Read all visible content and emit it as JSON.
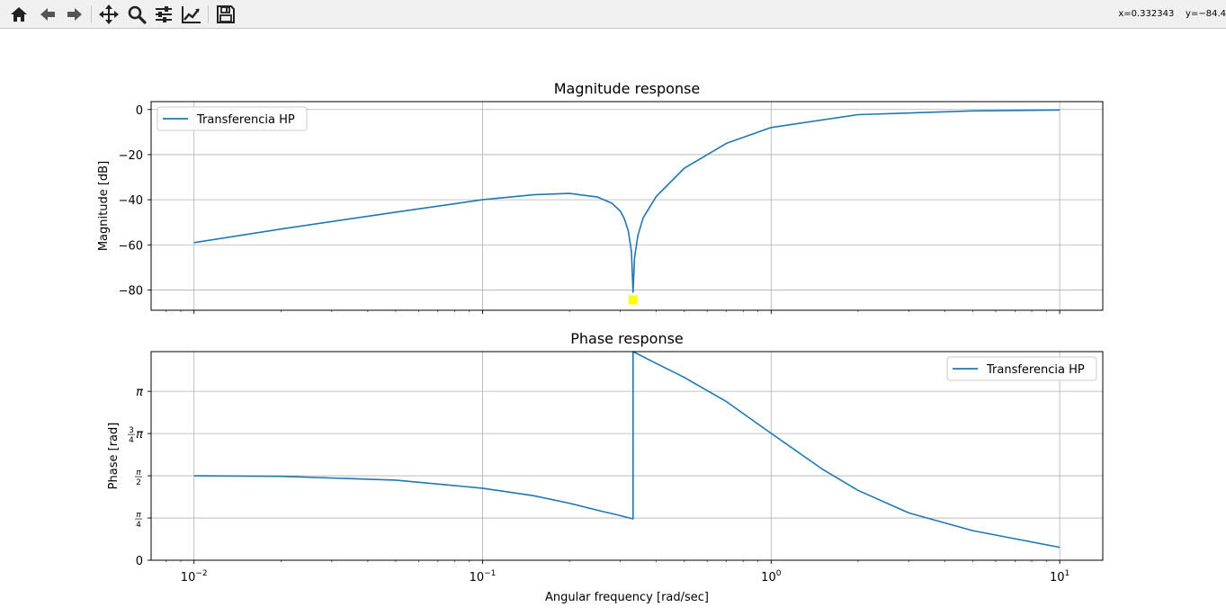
{
  "toolbar": {
    "buttons": [
      {
        "name": "home-button",
        "icon": "home-icon"
      },
      {
        "name": "back-button",
        "icon": "arrow-left-icon"
      },
      {
        "name": "forward-button",
        "icon": "arrow-right-icon"
      },
      {
        "name": "pan-button",
        "icon": "move-icon"
      },
      {
        "name": "zoom-button",
        "icon": "magnifier-icon"
      },
      {
        "name": "configure-subplots-button",
        "icon": "sliders-icon"
      },
      {
        "name": "edit-axis-button",
        "icon": "line-chart-icon"
      },
      {
        "name": "save-button",
        "icon": "floppy-disk-icon"
      }
    ],
    "coords": "x=0.332343    y=−84.4"
  },
  "colors": {
    "line": "#1f77b4",
    "marker": "#ffff00",
    "grid": "#b0b0b0"
  },
  "chart_data": [
    {
      "type": "line",
      "title": "Magnitude response",
      "ylabel": "Magnitude [dB]",
      "xscale": "log",
      "xlim": [
        0.0071,
        14.1
      ],
      "ylim": [
        -89,
        3.5
      ],
      "grid": true,
      "legend_position": "upper left",
      "y_ticks": [
        0,
        -20,
        -40,
        -60,
        -80
      ],
      "y_tick_labels": [
        "0",
        "−20",
        "−40",
        "−60",
        "−80"
      ],
      "series": [
        {
          "name": "Transferencia HP",
          "x": [
            0.01,
            0.02,
            0.05,
            0.1,
            0.15,
            0.2,
            0.25,
            0.28,
            0.3,
            0.31,
            0.32,
            0.328,
            0.3323,
            0.336,
            0.345,
            0.36,
            0.4,
            0.5,
            0.7,
            1.0,
            2.0,
            5.0,
            10.0
          ],
          "y": [
            -59,
            -53,
            -45.5,
            -40,
            -37.8,
            -37.2,
            -38.8,
            -41.5,
            -45,
            -48.5,
            -54,
            -63,
            -81,
            -66,
            -56,
            -48,
            -38.5,
            -26,
            -15,
            -8,
            -2.3,
            -0.6,
            -0.2
          ]
        }
      ],
      "marker": {
        "x": 0.3323,
        "y": -84.4
      }
    },
    {
      "type": "line",
      "title": "Phase response",
      "xlabel": "Angular frequency [rad/sec]",
      "ylabel": "Phase [rad]",
      "xscale": "log",
      "xlim": [
        0.0071,
        14.1
      ],
      "ylim": [
        0,
        3.88
      ],
      "grid": true,
      "legend_position": "upper right",
      "x_ticks": [
        0.01,
        0.1,
        1,
        10
      ],
      "x_tick_labels": [
        {
          "base": "10",
          "exp": "−2"
        },
        {
          "base": "10",
          "exp": "−1"
        },
        {
          "base": "10",
          "exp": "0"
        },
        {
          "base": "10",
          "exp": "1"
        }
      ],
      "y_ticks": [
        0,
        0.7854,
        1.5708,
        2.3562,
        3.1416
      ],
      "y_tick_labels": [
        {
          "t": "0"
        },
        {
          "num": "π",
          "den": "4"
        },
        {
          "num": "π",
          "den": "2"
        },
        {
          "num": "3",
          "den": "4",
          "suffix": "π"
        },
        {
          "t": "π"
        }
      ],
      "series": [
        {
          "name": "Transferencia HP",
          "x": [
            0.01,
            0.02,
            0.05,
            0.1,
            0.15,
            0.2,
            0.25,
            0.3,
            0.3323,
            0.3323,
            0.4,
            0.5,
            0.7,
            1.0,
            1.5,
            2.0,
            3.0,
            5.0,
            7.0,
            10.0
          ],
          "y": [
            1.57,
            1.56,
            1.49,
            1.34,
            1.2,
            1.06,
            0.93,
            0.83,
            0.77,
            3.88,
            3.66,
            3.4,
            2.95,
            2.36,
            1.7,
            1.3,
            0.88,
            0.55,
            0.4,
            0.24
          ]
        }
      ]
    }
  ]
}
